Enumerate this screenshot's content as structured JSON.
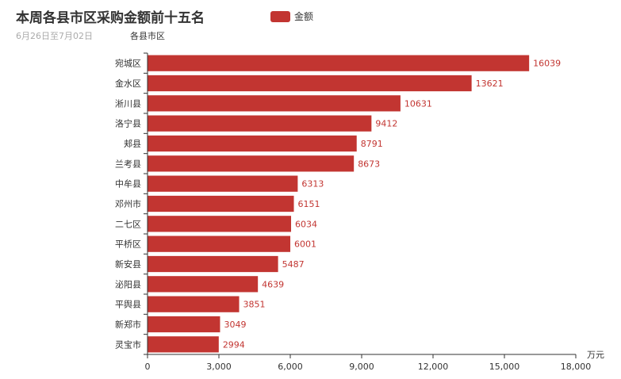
{
  "header": {
    "title": "本周各县市区采购金额前十五名",
    "subtitle": "6月26日至7月02日"
  },
  "legend": {
    "label": "金额"
  },
  "colors": {
    "bar": "#c23531",
    "axis": "#333333"
  },
  "chart_data": {
    "type": "bar",
    "orientation": "horizontal",
    "title": "本周各县市区采购金额前十五名",
    "subtitle": "6月26日至7月02日",
    "ylabel": "各县市区",
    "xlabel": "万元",
    "xlim": [
      0,
      18000
    ],
    "xticks": [
      "0",
      "3,000",
      "6,000",
      "9,000",
      "12,000",
      "15,000",
      "18,000"
    ],
    "grid": false,
    "legend_position": "top-center",
    "series": [
      {
        "name": "金额"
      }
    ],
    "categories": [
      "宛城区",
      "金水区",
      "淅川县",
      "洛宁县",
      "郏县",
      "兰考县",
      "中牟县",
      "邓州市",
      "二七区",
      "平桥区",
      "新安县",
      "泌阳县",
      "平舆县",
      "新郑市",
      "灵宝市"
    ],
    "values": [
      16039,
      13621,
      10631,
      9412,
      8791,
      8673,
      6313,
      6151,
      6034,
      6001,
      5487,
      4639,
      3851,
      3049,
      2994
    ]
  }
}
